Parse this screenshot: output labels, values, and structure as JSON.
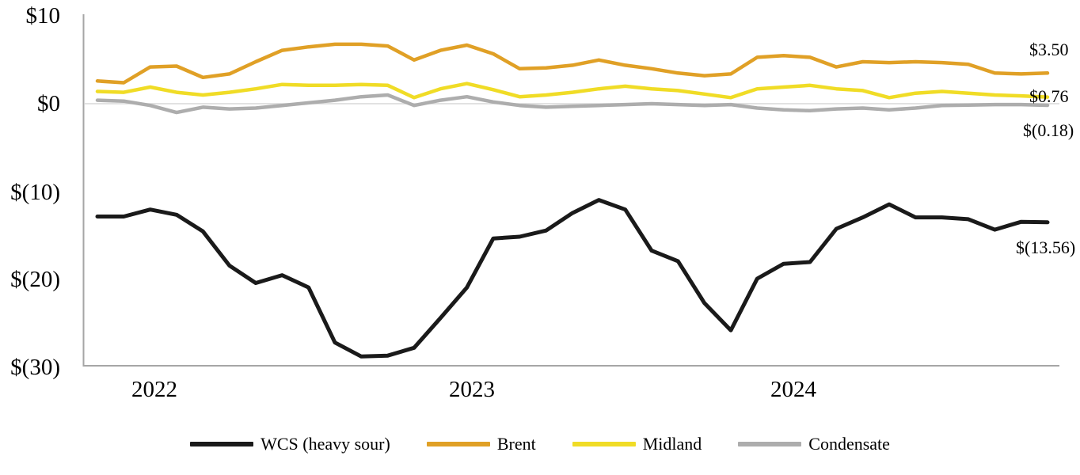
{
  "chart_data": {
    "type": "line",
    "title": "",
    "xlabel": "",
    "ylabel": "",
    "ylim": [
      -30,
      10
    ],
    "grid": "zero-line-only",
    "legend_position": "bottom",
    "x_unit": "month",
    "x": [
      "Nov 2021",
      "Dec 2021",
      "Jan 2022",
      "Feb 2022",
      "Mar 2022",
      "Apr 2022",
      "May 2022",
      "Jun 2022",
      "Jul 2022",
      "Aug 2022",
      "Sep 2022",
      "Oct 2022",
      "Nov 2022",
      "Dec 2022",
      "Jan 2023",
      "Feb 2023",
      "Mar 2023",
      "Apr 2023",
      "May 2023",
      "Jun 2023",
      "Jul 2023",
      "Aug 2023",
      "Sep 2023",
      "Oct 2023",
      "Nov 2023",
      "Dec 2023",
      "Jan 2024",
      "Feb 2024",
      "Mar 2024",
      "Apr 2024",
      "May 2024",
      "Jun 2024",
      "Jul 2024",
      "Aug 2024",
      "Sep 2024",
      "Oct 2024",
      "Nov 2024"
    ],
    "series": [
      {
        "id": "wcs",
        "name": "WCS (heavy sour)",
        "color": "#1A1A1A",
        "end_label": "$(13.56)",
        "end_value": -13.56,
        "values": [
          -12.9,
          -12.9,
          -12.1,
          -12.7,
          -14.6,
          -18.5,
          -20.5,
          -19.6,
          -21.0,
          -27.3,
          -28.9,
          -28.8,
          -27.9,
          -24.5,
          -21.0,
          -15.4,
          -15.2,
          -14.5,
          -12.5,
          -11.0,
          -12.1,
          -16.8,
          -18.0,
          -22.8,
          -25.9,
          -20.0,
          -18.3,
          -18.1,
          -14.3,
          -13.0,
          -11.5,
          -13.0,
          -13.0,
          -13.2,
          -14.4,
          -13.5,
          -13.56
        ]
      },
      {
        "id": "brent",
        "name": "Brent",
        "color": "#E0A026",
        "end_label": "$3.50",
        "end_value": 3.5,
        "values": [
          2.6,
          2.4,
          4.2,
          4.3,
          3.0,
          3.4,
          4.8,
          6.1,
          6.5,
          6.8,
          6.8,
          6.6,
          5.0,
          6.1,
          6.7,
          5.7,
          4.0,
          4.1,
          4.4,
          5.0,
          4.4,
          4.0,
          3.5,
          3.2,
          3.4,
          5.3,
          5.5,
          5.3,
          4.2,
          4.8,
          4.7,
          4.8,
          4.7,
          4.5,
          3.5,
          3.4,
          3.5
        ]
      },
      {
        "id": "midland",
        "name": "Midland",
        "color": "#F0DC26",
        "end_label": "$0.76",
        "end_value": 0.76,
        "values": [
          1.4,
          1.3,
          1.9,
          1.3,
          1.0,
          1.3,
          1.7,
          2.2,
          2.1,
          2.1,
          2.2,
          2.1,
          0.7,
          1.7,
          2.3,
          1.6,
          0.8,
          1.0,
          1.3,
          1.7,
          2.0,
          1.7,
          1.5,
          1.1,
          0.7,
          1.7,
          1.9,
          2.1,
          1.7,
          1.5,
          0.7,
          1.2,
          1.4,
          1.2,
          1.0,
          0.9,
          0.76
        ]
      },
      {
        "id": "condensate",
        "name": "Condensate",
        "color": "#ADADAD",
        "end_label": "$(0.18)",
        "end_value": -0.18,
        "values": [
          0.4,
          0.3,
          -0.2,
          -1.0,
          -0.4,
          -0.6,
          -0.5,
          -0.2,
          0.1,
          0.4,
          0.8,
          1.0,
          -0.2,
          0.4,
          0.8,
          0.2,
          -0.2,
          -0.4,
          -0.3,
          -0.2,
          -0.1,
          0.0,
          -0.1,
          -0.2,
          -0.1,
          -0.5,
          -0.7,
          -0.8,
          -0.6,
          -0.5,
          -0.7,
          -0.5,
          -0.2,
          -0.15,
          -0.1,
          -0.1,
          -0.18
        ]
      }
    ],
    "y_ticks": [
      {
        "label": "$10",
        "value": 10
      },
      {
        "label": "$0",
        "value": 0
      },
      {
        "label": "$(10)",
        "value": -10
      },
      {
        "label": "$(20)",
        "value": -20
      },
      {
        "label": "$(30)",
        "value": -30
      }
    ],
    "x_ticks": [
      {
        "label": "2022"
      },
      {
        "label": "2023"
      },
      {
        "label": "2024"
      }
    ],
    "colors": {
      "axis": "#A6A6A6",
      "zero_line": "#D9D9D9",
      "background": "#FFFFFF"
    }
  }
}
